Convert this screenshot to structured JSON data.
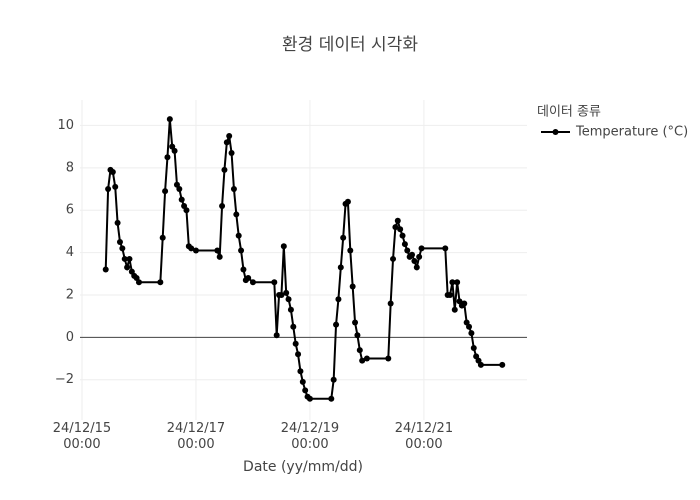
{
  "chart_data": {
    "type": "line",
    "title": "환경 데이터 시각화",
    "x_label": "Date (yy/mm/dd)",
    "legend_title": "데이터 종류",
    "legend": "right",
    "grid": true,
    "xlim": [
      "2024-12-14 23:10",
      "2024-12-22 19:25"
    ],
    "xticks": [
      {
        "value": "2024-12-15 00:00",
        "label": "24/12/15 00:00"
      },
      {
        "value": "2024-12-17 00:00",
        "label": "24/12/17 00:00"
      },
      {
        "value": "2024-12-19 00:00",
        "label": "24/12/19 00:00"
      },
      {
        "value": "2024-12-21 00:00",
        "label": "24/12/21 00:00"
      }
    ],
    "ylim": [
      -3.9,
      11.2
    ],
    "yticks": [
      {
        "value": -2,
        "label": "−2"
      },
      0,
      2,
      4,
      6,
      8,
      10
    ],
    "x": [
      "2024-12-15 10:00",
      "2024-12-15 11:00",
      "2024-12-15 12:00",
      "2024-12-15 13:00",
      "2024-12-15 14:00",
      "2024-12-15 15:00",
      "2024-12-15 16:00",
      "2024-12-15 17:00",
      "2024-12-15 18:00",
      "2024-12-15 19:00",
      "2024-12-15 20:00",
      "2024-12-15 21:00",
      "2024-12-15 22:00",
      "2024-12-15 23:00",
      "2024-12-16 00:00",
      "2024-12-16 09:00",
      "2024-12-16 10:00",
      "2024-12-16 11:00",
      "2024-12-16 12:00",
      "2024-12-16 13:00",
      "2024-12-16 14:00",
      "2024-12-16 15:00",
      "2024-12-16 16:00",
      "2024-12-16 17:00",
      "2024-12-16 18:00",
      "2024-12-16 19:00",
      "2024-12-16 20:00",
      "2024-12-16 21:00",
      "2024-12-16 22:00",
      "2024-12-17 00:00",
      "2024-12-17 09:00",
      "2024-12-17 10:00",
      "2024-12-17 11:00",
      "2024-12-17 12:00",
      "2024-12-17 13:00",
      "2024-12-17 14:00",
      "2024-12-17 15:00",
      "2024-12-17 16:00",
      "2024-12-17 17:00",
      "2024-12-17 18:00",
      "2024-12-17 19:00",
      "2024-12-17 20:00",
      "2024-12-17 21:00",
      "2024-12-17 22:00",
      "2024-12-18 00:00",
      "2024-12-18 09:00",
      "2024-12-18 10:00",
      "2024-12-18 11:00",
      "2024-12-18 12:00",
      "2024-12-18 13:00",
      "2024-12-18 14:00",
      "2024-12-18 15:00",
      "2024-12-18 16:00",
      "2024-12-18 17:00",
      "2024-12-18 18:00",
      "2024-12-18 19:00",
      "2024-12-18 20:00",
      "2024-12-18 21:00",
      "2024-12-18 22:00",
      "2024-12-18 23:00",
      "2024-12-19 00:00",
      "2024-12-19 09:00",
      "2024-12-19 10:00",
      "2024-12-19 11:00",
      "2024-12-19 12:00",
      "2024-12-19 13:00",
      "2024-12-19 14:00",
      "2024-12-19 15:00",
      "2024-12-19 16:00",
      "2024-12-19 17:00",
      "2024-12-19 18:00",
      "2024-12-19 19:00",
      "2024-12-19 20:00",
      "2024-12-19 21:00",
      "2024-12-19 22:00",
      "2024-12-20 00:00",
      "2024-12-20 09:00",
      "2024-12-20 10:00",
      "2024-12-20 11:00",
      "2024-12-20 12:00",
      "2024-12-20 13:00",
      "2024-12-20 14:00",
      "2024-12-20 15:00",
      "2024-12-20 16:00",
      "2024-12-20 17:00",
      "2024-12-20 18:00",
      "2024-12-20 19:00",
      "2024-12-20 20:00",
      "2024-12-20 21:00",
      "2024-12-20 22:00",
      "2024-12-20 23:00",
      "2024-12-21 09:00",
      "2024-12-21 10:00",
      "2024-12-21 11:00",
      "2024-12-21 12:00",
      "2024-12-21 13:00",
      "2024-12-21 14:00",
      "2024-12-21 15:00",
      "2024-12-21 16:00",
      "2024-12-21 17:00",
      "2024-12-21 18:00",
      "2024-12-21 19:00",
      "2024-12-21 20:00",
      "2024-12-21 21:00",
      "2024-12-21 22:00",
      "2024-12-21 23:00",
      "2024-12-22 00:00",
      "2024-12-22 09:00"
    ],
    "series": [
      {
        "name": "Temperature (°C)",
        "color": "#000000",
        "values": [
          3.2,
          7.0,
          7.9,
          7.8,
          7.1,
          5.4,
          4.5,
          4.2,
          3.7,
          3.3,
          3.7,
          3.1,
          2.9,
          2.8,
          2.6,
          2.6,
          4.7,
          6.9,
          8.5,
          10.3,
          9.0,
          8.8,
          7.2,
          7.0,
          6.5,
          6.2,
          6.0,
          4.3,
          4.2,
          4.1,
          4.1,
          3.8,
          6.2,
          7.9,
          9.2,
          9.5,
          8.7,
          7.0,
          5.8,
          4.8,
          4.1,
          3.2,
          2.7,
          2.8,
          2.6,
          2.6,
          0.1,
          2.0,
          2.0,
          4.3,
          2.1,
          1.8,
          1.3,
          0.5,
          -0.3,
          -0.8,
          -1.6,
          -2.1,
          -2.5,
          -2.8,
          -2.9,
          -2.9,
          -2.0,
          0.6,
          1.8,
          3.3,
          4.7,
          6.3,
          6.4,
          4.1,
          2.4,
          0.7,
          0.1,
          -0.6,
          -1.1,
          -1.0,
          -1.0,
          1.6,
          3.7,
          5.2,
          5.5,
          5.1,
          4.8,
          4.4,
          4.1,
          3.8,
          3.9,
          3.6,
          3.3,
          3.8,
          4.2,
          4.2,
          2.0,
          2.0,
          2.6,
          1.3,
          2.6,
          1.7,
          1.5,
          1.6,
          0.7,
          0.5,
          0.2,
          -0.5,
          -0.9,
          -1.1,
          -1.3,
          -1.3
        ]
      }
    ]
  }
}
